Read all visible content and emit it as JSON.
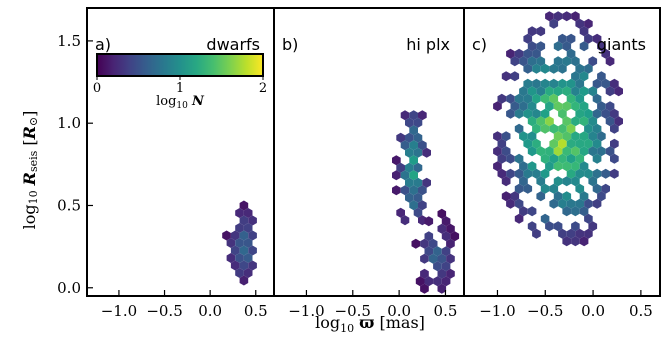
{
  "chart_data": {
    "type": "heatmap",
    "shared_ylabel": "log10 R_seis [R_⊙]",
    "shared_xlabel": "log10 ϖ [mas]",
    "ylim": [
      -0.05,
      1.7
    ],
    "y_ticks": [
      0.0,
      0.5,
      1.0,
      1.5
    ],
    "y_tick_labels": [
      "0.0",
      "0.5",
      "1.0",
      "1.5"
    ],
    "xlim": [
      -1.35,
      0.7
    ],
    "x_ticks": [
      -1.0,
      -0.5,
      0.0,
      0.5
    ],
    "x_tick_labels": [
      "−1.0",
      "−0.5",
      "0.0",
      "0.5"
    ],
    "colorbar": {
      "label": "log10 N",
      "range": [
        0,
        2
      ],
      "ticks": [
        0,
        1,
        2
      ],
      "tick_labels": [
        "0",
        "1",
        "2"
      ],
      "colormap": "viridis",
      "colors": [
        "#440154",
        "#3b528b",
        "#21918c",
        "#5ec962",
        "#fde725"
      ]
    },
    "panels": [
      {
        "tag": "a)",
        "name": "dwarfs",
        "density_regions": [
          {
            "x_center": 0.38,
            "y_center": 0.25,
            "x_half_width": 0.2,
            "y_half_height": 0.25,
            "peak_log10N": 0.8
          }
        ]
      },
      {
        "tag": "b)",
        "name": "hi plx",
        "density_regions": [
          {
            "x_center": 0.15,
            "y_center": 0.72,
            "x_half_width": 0.18,
            "y_half_height": 0.42,
            "peak_log10N": 1.2
          },
          {
            "x_center": 0.4,
            "y_center": 0.2,
            "x_half_width": 0.22,
            "y_half_height": 0.25,
            "peak_log10N": 0.7
          }
        ]
      },
      {
        "tag": "c)",
        "name": "giants",
        "density_regions": [
          {
            "x_center": -0.35,
            "y_center": 0.95,
            "x_half_width": 0.65,
            "y_half_height": 0.7,
            "peak_log10N": 1.85
          }
        ]
      }
    ]
  }
}
